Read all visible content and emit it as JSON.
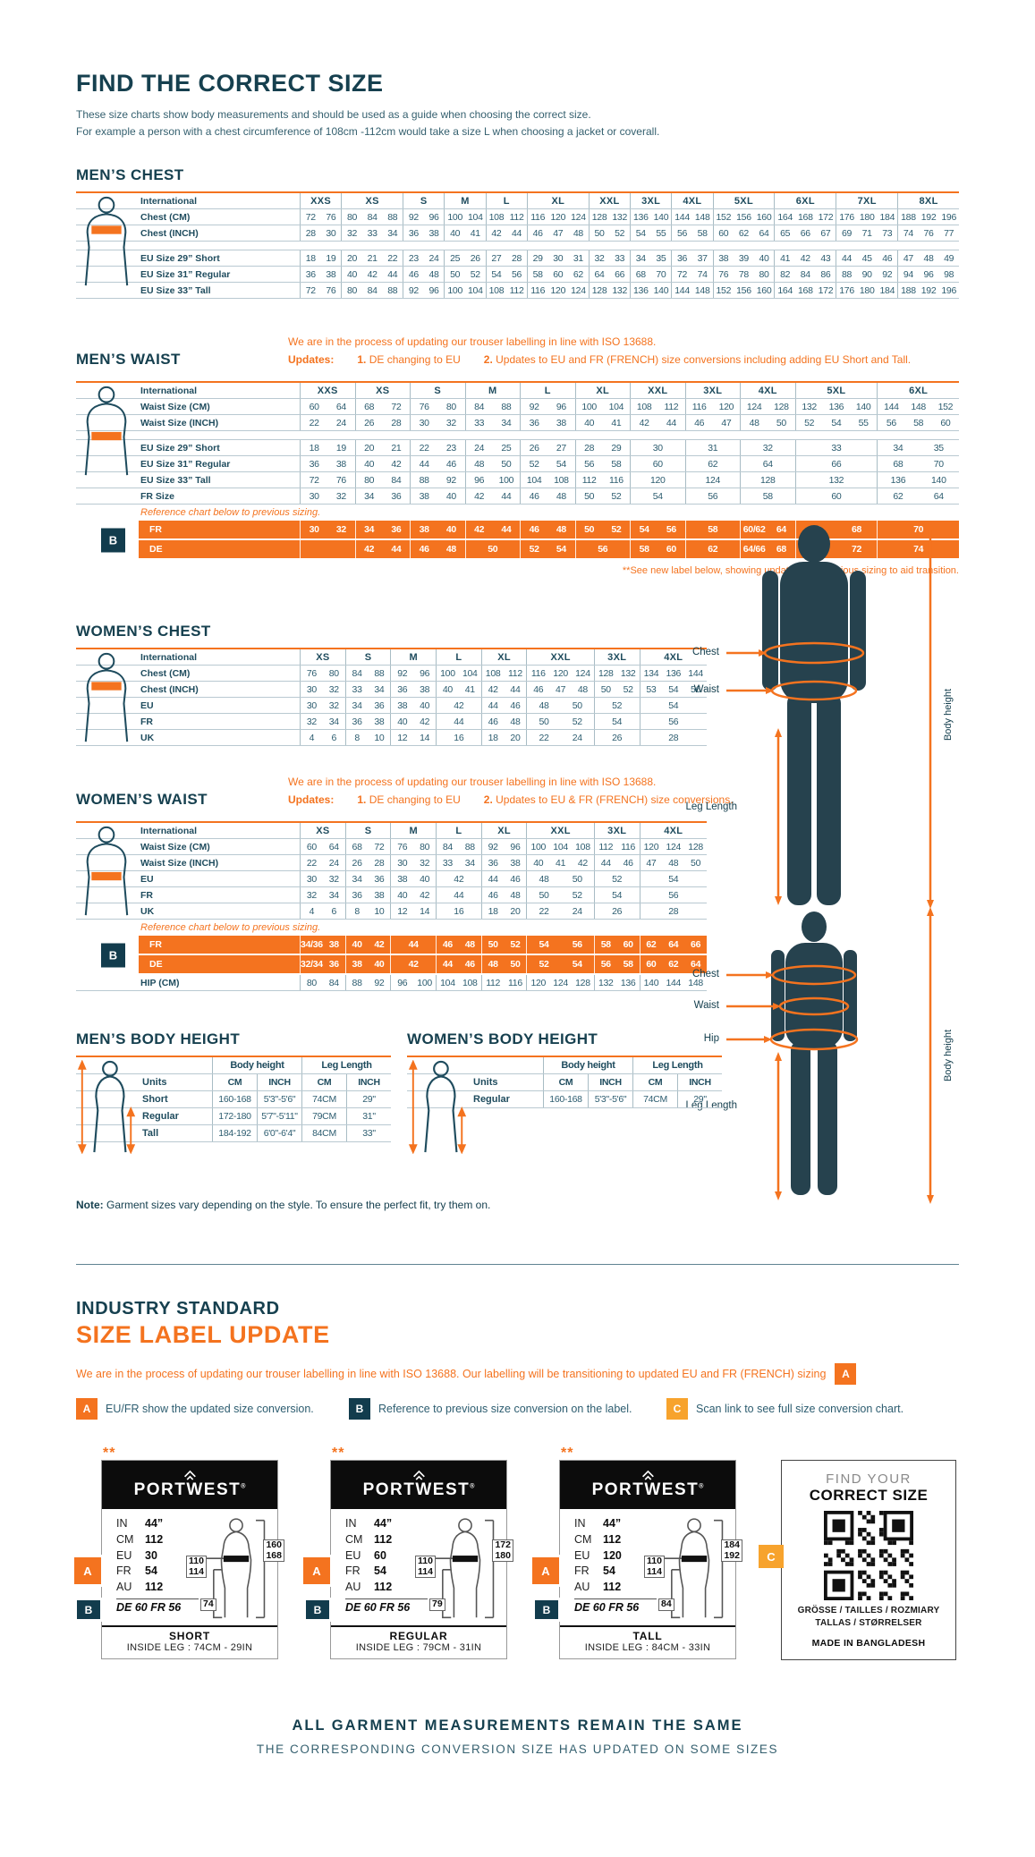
{
  "title": "FIND THE CORRECT SIZE",
  "intro1": "These size charts show body measurements and should be used as a guide when choosing the correct size.",
  "intro2": "For example a person with a chest circumference of 108cm -112cm would take a size L when choosing a jacket or coverall.",
  "note_label": "Note:",
  "note_text": " Garment sizes vary depending on the style. To ensure the perfect fit, try them on.",
  "figure_labels": {
    "chest": "Chest",
    "waist": "Waist",
    "hip": "Hip",
    "leg": "Leg Length",
    "height": "Body height"
  },
  "tables": {
    "mens_chest": {
      "title": "MEN’S CHEST",
      "label_header": "International",
      "sizes": [
        {
          "label": "XXS",
          "span": 2
        },
        {
          "label": "XS",
          "span": 3
        },
        {
          "label": "S",
          "span": 2
        },
        {
          "label": "M",
          "span": 2
        },
        {
          "label": "L",
          "span": 2
        },
        {
          "label": "XL",
          "span": 3
        },
        {
          "label": "XXL",
          "span": 2
        },
        {
          "label": "3XL",
          "span": 2
        },
        {
          "label": "4XL",
          "span": 2
        },
        {
          "label": "5XL",
          "span": 3
        },
        {
          "label": "6XL",
          "span": 3
        },
        {
          "label": "7XL",
          "span": 3
        },
        {
          "label": "8XL",
          "span": 3
        }
      ],
      "rows": [
        {
          "label": "Chest (CM)",
          "cells": [
            "72 76",
            "80 84 88",
            "92 96",
            "100 104",
            "108 112",
            "116 120 124",
            "128 132",
            "136 140",
            "144 148",
            "152 156 160",
            "164 168 172",
            "176 180 184",
            "188 192 196"
          ]
        },
        {
          "label": "Chest (INCH)",
          "cells": [
            "28 30",
            "32 33 34",
            "36 38",
            "40 41",
            "42 44",
            "46 47 48",
            "50 52",
            "54 55",
            "56 58",
            "60 62 64",
            "65 66 67",
            "69 71 73",
            "74 76 77"
          ]
        },
        {
          "gap": true
        },
        {
          "label": "EU Size 29” Short",
          "cells": [
            "18 19",
            "20 21 22",
            "23 24",
            "25 26",
            "27 28",
            "29 30 31",
            "32 33",
            "34 35",
            "36 37",
            "38 39 40",
            "41 42 43",
            "44 45 46",
            "47 48 49"
          ]
        },
        {
          "label": "EU Size 31” Regular",
          "cells": [
            "36 38",
            "40 42 44",
            "46 48",
            "50 52",
            "54 56",
            "58 60 62",
            "64 66",
            "68 70",
            "72 74",
            "76 78 80",
            "82 84 86",
            "88 90 92",
            "94 96 98"
          ]
        },
        {
          "label": "EU Size 33” Tall",
          "cells": [
            "72 76",
            "80 84 88",
            "92 96",
            "100 104",
            "108 112",
            "116 120 124",
            "128 132",
            "136 140",
            "144 148",
            "152 156 160",
            "164 168 172",
            "176 180 184",
            "188 192 196"
          ]
        }
      ]
    },
    "mens_waist": {
      "title": "MEN’S WAIST",
      "label_header": "International",
      "note1": "We are in the process of updating our trouser labelling in line with ISO 13688.",
      "updates_label": "Updates:",
      "u1_num": "1.",
      "u1": " DE changing to EU",
      "u2_num": "2.",
      "u2": " Updates to EU and FR (FRENCH) size conversions including adding EU Short and Tall.",
      "footnote": "**See new label below, showing updated and previous sizing to aid transition.",
      "sizes": [
        {
          "label": "XXS",
          "span": 2
        },
        {
          "label": "XS",
          "span": 2
        },
        {
          "label": "S",
          "span": 2
        },
        {
          "label": "M",
          "span": 2
        },
        {
          "label": "L",
          "span": 2
        },
        {
          "label": "XL",
          "span": 2
        },
        {
          "label": "XXL",
          "span": 2
        },
        {
          "label": "3XL",
          "span": 2
        },
        {
          "label": "4XL",
          "span": 2
        },
        {
          "label": "5XL",
          "span": 3
        },
        {
          "label": "6XL",
          "span": 3
        }
      ],
      "rows": [
        {
          "label": "Waist Size (CM)",
          "cells": [
            "60 64",
            "68 72",
            "76 80",
            "84 88",
            "92 96",
            "100 104",
            "108 112",
            "116 120",
            "124 128",
            "132 136 140",
            "144 148 152"
          ]
        },
        {
          "label": "Waist Size (INCH)",
          "cells": [
            "22 24",
            "26 28",
            "30 32",
            "33 34",
            "36 38",
            "40 41",
            "42 44",
            "46 47",
            "48 50",
            "52 54 55",
            "56 58 60"
          ]
        },
        {
          "gap": true
        },
        {
          "label": "EU Size 29” Short",
          "cells": [
            "18 19",
            "20 21",
            "22 23",
            "24 25",
            "26 27",
            "28 29",
            "30",
            "31",
            "32",
            "33",
            "34 35"
          ]
        },
        {
          "label": "EU Size 31” Regular",
          "cells": [
            "36 38",
            "40 42",
            "44 46",
            "48 50",
            "52 54",
            "56 58",
            "60",
            "62",
            "64",
            "66",
            "68 70"
          ]
        },
        {
          "label": "EU Size 33” Tall",
          "cells": [
            "72 76",
            "80 84",
            "88 92",
            "96 100",
            "104 108",
            "112 116",
            "120",
            "124",
            "128",
            "132",
            "136 140"
          ]
        },
        {
          "label": "FR Size",
          "cells": [
            "30 32",
            "34 36",
            "38 40",
            "42 44",
            "46 48",
            "50 52",
            "54",
            "56",
            "58",
            "60",
            "62 64"
          ]
        },
        {
          "note": "Reference chart below to previous sizing."
        },
        {
          "label": "FR",
          "orange": true,
          "cells": [
            "30 32",
            "34 36",
            "38 40",
            "42 44",
            "46 48",
            "50 52",
            "54 56",
            "58",
            "60/62 64",
            "66 68",
            "70"
          ]
        },
        {
          "label": "DE",
          "orange": true,
          "cells": [
            "",
            "42 44",
            "46 48",
            "50",
            "52 54",
            "56",
            "58 60",
            "62",
            "64/66 68",
            "70 72",
            "74"
          ]
        }
      ]
    },
    "womens_chest": {
      "title": "WOMEN’S CHEST",
      "label_header": "International",
      "sizes": [
        {
          "label": "XS",
          "span": 2
        },
        {
          "label": "S",
          "span": 2
        },
        {
          "label": "M",
          "span": 2
        },
        {
          "label": "L",
          "span": 2
        },
        {
          "label": "XL",
          "span": 2
        },
        {
          "label": "XXL",
          "span": 3
        },
        {
          "label": "3XL",
          "span": 2
        },
        {
          "label": "4XL",
          "span": 3
        }
      ],
      "rows": [
        {
          "label": "Chest (CM)",
          "cells": [
            "76 80",
            "84 88",
            "92 96",
            "100 104",
            "108 112",
            "116 120 124",
            "128 132",
            "134 136 144"
          ]
        },
        {
          "label": "Chest (INCH)",
          "cells": [
            "30 32",
            "33 34",
            "36 38",
            "40 41",
            "42 44",
            "46 47 48",
            "50 52",
            "53 54 56"
          ]
        },
        {
          "label": "EU",
          "cells": [
            "30 32",
            "34 36",
            "38 40",
            "42",
            "44 46",
            "48 50",
            "52",
            "54"
          ]
        },
        {
          "label": "FR",
          "cells": [
            "32 34",
            "36 38",
            "40 42",
            "44",
            "46 48",
            "50 52",
            "54",
            "56"
          ]
        },
        {
          "label": "UK",
          "cells": [
            "4 6",
            "8 10",
            "12 14",
            "16",
            "18 20",
            "22 24",
            "26",
            "28"
          ]
        }
      ]
    },
    "womens_waist": {
      "title": "WOMEN’S WAIST",
      "label_header": "International",
      "note1": "We are in the process of updating our trouser labelling in line with ISO 13688.",
      "updates_label": "Updates:",
      "u1_num": "1.",
      "u1": " DE changing to EU",
      "u2_num": "2.",
      "u2": " Updates to EU & FR (FRENCH) size conversions.",
      "sizes": [
        {
          "label": "XS",
          "span": 2
        },
        {
          "label": "S",
          "span": 2
        },
        {
          "label": "M",
          "span": 2
        },
        {
          "label": "L",
          "span": 2
        },
        {
          "label": "XL",
          "span": 2
        },
        {
          "label": "XXL",
          "span": 3
        },
        {
          "label": "3XL",
          "span": 2
        },
        {
          "label": "4XL",
          "span": 3
        }
      ],
      "rows": [
        {
          "label": "Waist Size (CM)",
          "cells": [
            "60 64",
            "68 72",
            "76 80",
            "84 88",
            "92 96",
            "100 104 108",
            "112 116",
            "120 124 128"
          ]
        },
        {
          "label": "Waist Size (INCH)",
          "cells": [
            "22 24",
            "26 28",
            "30 32",
            "33 34",
            "36 38",
            "40 41 42",
            "44 46",
            "47 48 50"
          ]
        },
        {
          "label": "EU",
          "cells": [
            "30 32",
            "34 36",
            "38 40",
            "42",
            "44 46",
            "48 50",
            "52",
            "54"
          ]
        },
        {
          "label": "FR",
          "cells": [
            "32 34",
            "36 38",
            "40 42",
            "44",
            "46 48",
            "50 52",
            "54",
            "56"
          ]
        },
        {
          "label": "UK",
          "cells": [
            "4 6",
            "8 10",
            "12 14",
            "16",
            "18 20",
            "22 24",
            "26",
            "28"
          ]
        },
        {
          "note": "Reference chart below to previous sizing."
        },
        {
          "label": "FR",
          "orange": true,
          "cells": [
            "34/36 38",
            "40 42",
            "44",
            "46 48",
            "50 52",
            "54 56",
            "58 60",
            "62 64 66"
          ]
        },
        {
          "label": "DE",
          "orange": true,
          "cells": [
            "32/34 36",
            "38 40",
            "42",
            "44 46",
            "48 50",
            "52 54",
            "56 58",
            "60 62 64"
          ]
        },
        {
          "label": "HIP (CM)",
          "cells": [
            "80 84",
            "88 92",
            "96 100",
            "104 108",
            "112 116",
            "120 124 128",
            "132 136",
            "140 144 148"
          ]
        }
      ]
    },
    "mens_body_height": {
      "title": "MEN’S BODY HEIGHT",
      "groups": [
        "Body height",
        "Leg Length"
      ],
      "cols": [
        "Units",
        "CM",
        "INCH",
        "CM",
        "INCH"
      ],
      "rows": [
        [
          "Short",
          "160-168",
          "5'3\"-5'6\"",
          "74CM",
          "29\""
        ],
        [
          "Regular",
          "172-180",
          "5'7\"-5'11\"",
          "79CM",
          "31\""
        ],
        [
          "Tall",
          "184-192",
          "6'0\"-6'4\"",
          "84CM",
          "33\""
        ]
      ]
    },
    "womens_body_height": {
      "title": "WOMEN’S BODY HEIGHT",
      "groups": [
        "Body height",
        "Leg Length"
      ],
      "cols": [
        "Units",
        "CM",
        "INCH",
        "CM",
        "INCH"
      ],
      "rows": [
        [
          "Regular",
          "160-168",
          "5'3\"-5'6\"",
          "74CM",
          "29\""
        ]
      ]
    }
  },
  "update": {
    "kicker": "INDUSTRY STANDARD",
    "heading": "SIZE LABEL UPDATE",
    "para": "We are in the process of updating our trouser labelling in line with ISO 13688. Our labelling will be transitioning to updated EU and FR (FRENCH) sizing",
    "para_badge": "A",
    "legend": [
      {
        "badge": "A",
        "style": "orange",
        "text": "EU/FR show the updated size conversion."
      },
      {
        "badge": "B",
        "style": "navy",
        "text": "Reference to previous size conversion on the label."
      },
      {
        "badge": "C",
        "style": "amber",
        "text": "Scan link to see full size conversion chart."
      }
    ]
  },
  "cards": [
    {
      "stars": "**",
      "brand": "PORTWEST",
      "reg": "®",
      "rows": [
        [
          "IN",
          "44”"
        ],
        [
          "CM",
          "112"
        ],
        [
          "EU",
          "30"
        ],
        [
          "FR",
          "54"
        ],
        [
          "AU",
          "112"
        ]
      ],
      "ref": "DE 60 FR 56",
      "badge_a": "A",
      "badge_b": "B",
      "waist_box": [
        "110",
        "114"
      ],
      "height_box": [
        "160",
        "168"
      ],
      "leg_box": "74",
      "fit": "SHORT",
      "inside_leg": "INSIDE LEG : 74CM - 29IN"
    },
    {
      "stars": "**",
      "brand": "PORTWEST",
      "reg": "®",
      "rows": [
        [
          "IN",
          "44”"
        ],
        [
          "CM",
          "112"
        ],
        [
          "EU",
          "60"
        ],
        [
          "FR",
          "54"
        ],
        [
          "AU",
          "112"
        ]
      ],
      "ref": "DE 60 FR 56",
      "badge_a": "A",
      "badge_b": "B",
      "waist_box": [
        "110",
        "114"
      ],
      "height_box": [
        "172",
        "180"
      ],
      "leg_box": "79",
      "fit": "REGULAR",
      "inside_leg": "INSIDE LEG : 79CM - 31IN"
    },
    {
      "stars": "**",
      "brand": "PORTWEST",
      "reg": "®",
      "rows": [
        [
          "IN",
          "44”"
        ],
        [
          "CM",
          "112"
        ],
        [
          "EU",
          "120"
        ],
        [
          "FR",
          "54"
        ],
        [
          "AU",
          "112"
        ]
      ],
      "ref": "DE 60 FR 56",
      "badge_a": "A",
      "badge_b": "B",
      "waist_box": [
        "110",
        "114"
      ],
      "height_box": [
        "184",
        "192"
      ],
      "leg_box": "84",
      "fit": "TALL",
      "inside_leg": "INSIDE LEG : 84CM - 33IN"
    }
  ],
  "qr_card": {
    "find": "FIND YOUR",
    "correct": "CORRECT SIZE",
    "langs1": "GRÖSSE / TAILLES / ROZMIARY",
    "langs2": "TALLAS  / STØRRELSER",
    "made": "MADE IN BANGLADESH",
    "badge": "C"
  },
  "footer1": "ALL GARMENT MEASUREMENTS REMAIN THE SAME",
  "footer2": "THE CORRESPONDING CONVERSION SIZE HAS UPDATED ON SOME SIZES"
}
